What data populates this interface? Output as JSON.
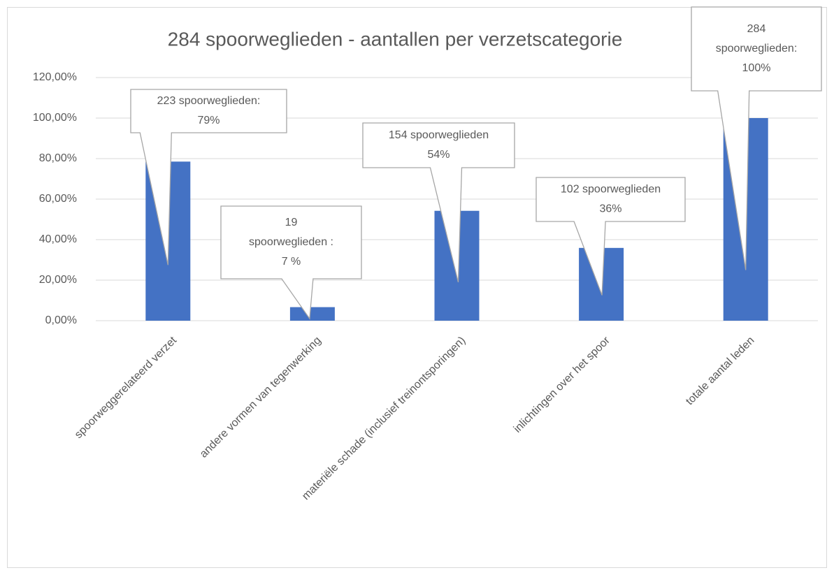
{
  "chart_data": {
    "type": "bar",
    "title": "284 spoorweglieden - aantallen per verzetscategorie",
    "categories": [
      "spoorweggerelateerd verzet",
      "andere vormen van tegenwerking",
      "materiële schade (inclusief treinontsporingen)",
      "inlichtingen over het spoor",
      "totale aantal leden"
    ],
    "values": [
      78.52,
      6.69,
      54.23,
      35.92,
      100
    ],
    "value_labels": [
      "223 spoorweglieden:\n79%",
      "19\nspoorweglieden :\n7 %",
      "154 spoorweglieden\n54%",
      "102 spoorweglieden\n36%",
      "284\nspoorweglieden:\n100%"
    ],
    "color": "#4472c4",
    "ylim": [
      0,
      120
    ],
    "yticks": [
      {
        "value": 0,
        "label": "0,00%"
      },
      {
        "value": 20,
        "label": "20,00%"
      },
      {
        "value": 40,
        "label": "40,00%"
      },
      {
        "value": 60,
        "label": "60,00%"
      },
      {
        "value": 80,
        "label": "80,00%"
      },
      {
        "value": 100,
        "label": "100,00%"
      },
      {
        "value": 120,
        "label": "120,00%"
      }
    ],
    "grid": true
  }
}
